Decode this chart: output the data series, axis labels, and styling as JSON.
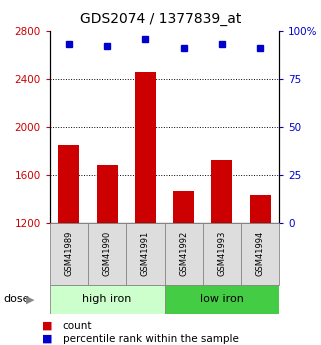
{
  "title": "GDS2074 / 1377839_at",
  "categories": [
    "GSM41989",
    "GSM41990",
    "GSM41991",
    "GSM41992",
    "GSM41993",
    "GSM41994"
  ],
  "bar_values": [
    1850,
    1680,
    2460,
    1460,
    1720,
    1430
  ],
  "bar_bottom": 1200,
  "bar_color": "#cc0000",
  "dot_values": [
    93,
    92,
    96,
    91,
    93,
    91
  ],
  "dot_color": "#0000cc",
  "ylim_left": [
    1200,
    2800
  ],
  "ylim_right": [
    0,
    100
  ],
  "yticks_left": [
    1200,
    1600,
    2000,
    2400,
    2800
  ],
  "ytick_left_labels": [
    "1200",
    "1600",
    "2000",
    "2400",
    "2800"
  ],
  "yticks_right": [
    0,
    25,
    50,
    75,
    100
  ],
  "ytick_right_labels": [
    "0",
    "25",
    "50",
    "75",
    "100%"
  ],
  "left_tick_color": "#cc0000",
  "right_tick_color": "#0000cc",
  "group1_label": "high iron",
  "group2_label": "low iron",
  "group1_color": "#ccffcc",
  "group2_color": "#44cc44",
  "group1_indices": [
    0,
    1,
    2
  ],
  "group2_indices": [
    3,
    4,
    5
  ],
  "dose_label": "dose",
  "legend_count_label": "count",
  "legend_pct_label": "percentile rank within the sample",
  "sample_box_color": "#dddddd",
  "sample_box_edge": "#888888",
  "grid_dotted_at": [
    1600,
    2000,
    2400
  ],
  "bar_width": 0.55
}
